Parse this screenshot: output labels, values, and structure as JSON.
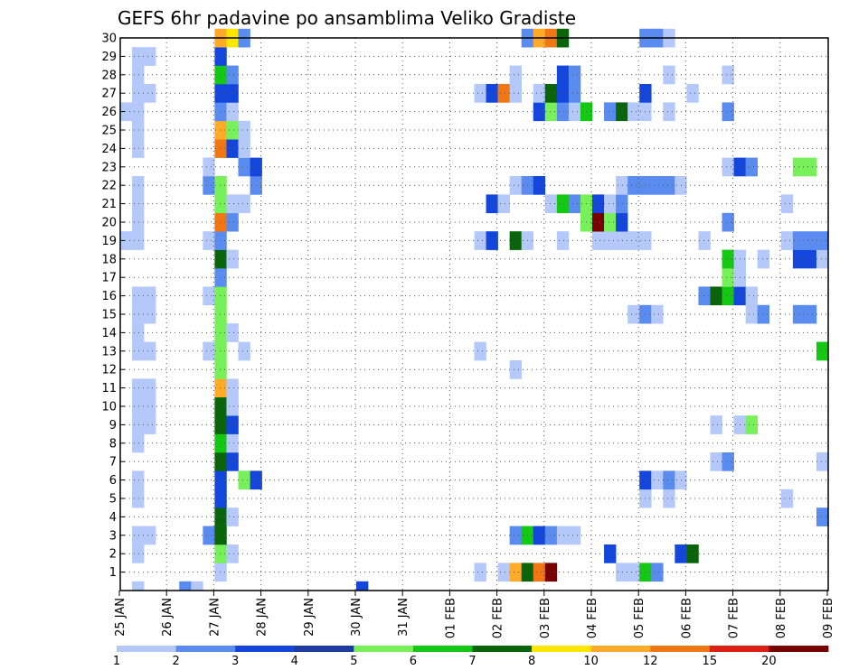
{
  "chart_data": {
    "type": "heatmap",
    "title": "GEFS 6hr padavine po ansamblima Veliko Gradiste",
    "x_tick_labels": [
      "25 JAN",
      "26 JAN",
      "27 JAN",
      "28 JAN",
      "29 JAN",
      "30 JAN",
      "31 JAN",
      "01 FEB",
      "02 FEB",
      "03 FEB",
      "04 FEB",
      "05 FEB",
      "06 FEB",
      "07 FEB",
      "08 FEB",
      "09 FEB"
    ],
    "y_tick_labels": [
      "1",
      "2",
      "3",
      "4",
      "5",
      "6",
      "7",
      "8",
      "9",
      "10",
      "11",
      "12",
      "13",
      "14",
      "15",
      "16",
      "17",
      "18",
      "19",
      "20",
      "21",
      "22",
      "23",
      "24",
      "25",
      "26",
      "27",
      "28",
      "29",
      "30"
    ],
    "legend": {
      "thresholds": [
        "1",
        "2",
        "3",
        "4",
        "5",
        "6",
        "7",
        "8",
        "10",
        "12",
        "15",
        "20"
      ],
      "colors": [
        "#b4c8fa",
        "#5a8cf0",
        "#1446dc",
        "#1e3ca0",
        "#78f05a",
        "#14c814",
        "#0a640a",
        "#ffe600",
        "#ffaa28",
        "#f07814",
        "#dc1e14",
        "#780000"
      ]
    },
    "grid": true,
    "cells": [
      {
        "x": 1,
        "m": 1,
        "l": 1
      },
      {
        "x": 5,
        "m": 1,
        "l": 2
      },
      {
        "x": 6,
        "m": 1,
        "l": 1
      },
      {
        "x": 20,
        "m": 1,
        "l": 3
      },
      {
        "x": 8,
        "m": 2,
        "l": 1
      },
      {
        "x": 30,
        "m": 2,
        "l": 1
      },
      {
        "x": 32,
        "m": 2,
        "l": 1
      },
      {
        "x": 33,
        "m": 2,
        "l": 9
      },
      {
        "x": 34,
        "m": 2,
        "l": 7
      },
      {
        "x": 35,
        "m": 2,
        "l": 10
      },
      {
        "x": 36,
        "m": 2,
        "l": 12
      },
      {
        "x": 42,
        "m": 2,
        "l": 1
      },
      {
        "x": 43,
        "m": 2,
        "l": 1
      },
      {
        "x": 44,
        "m": 2,
        "l": 6
      },
      {
        "x": 45,
        "m": 2,
        "l": 2
      },
      {
        "x": 1,
        "m": 3,
        "l": 1
      },
      {
        "x": 8,
        "m": 3,
        "l": 5
      },
      {
        "x": 9,
        "m": 3,
        "l": 1
      },
      {
        "x": 41,
        "m": 3,
        "l": 3
      },
      {
        "x": 47,
        "m": 3,
        "l": 3
      },
      {
        "x": 48,
        "m": 3,
        "l": 7
      },
      {
        "x": 1,
        "m": 4,
        "l": 1
      },
      {
        "x": 2,
        "m": 4,
        "l": 1
      },
      {
        "x": 7,
        "m": 4,
        "l": 2
      },
      {
        "x": 8,
        "m": 4,
        "l": 7
      },
      {
        "x": 33,
        "m": 4,
        "l": 2
      },
      {
        "x": 34,
        "m": 4,
        "l": 6
      },
      {
        "x": 35,
        "m": 4,
        "l": 3
      },
      {
        "x": 36,
        "m": 4,
        "l": 2
      },
      {
        "x": 37,
        "m": 4,
        "l": 1
      },
      {
        "x": 38,
        "m": 4,
        "l": 1
      },
      {
        "x": 8,
        "m": 5,
        "l": 7
      },
      {
        "x": 9,
        "m": 5,
        "l": 1
      },
      {
        "x": 59,
        "m": 5,
        "l": 2
      },
      {
        "x": 1,
        "m": 6,
        "l": 1
      },
      {
        "x": 8,
        "m": 6,
        "l": 3
      },
      {
        "x": 44,
        "m": 6,
        "l": 1
      },
      {
        "x": 46,
        "m": 6,
        "l": 1
      },
      {
        "x": 56,
        "m": 6,
        "l": 1
      },
      {
        "x": 1,
        "m": 7,
        "l": 1
      },
      {
        "x": 8,
        "m": 7,
        "l": 3
      },
      {
        "x": 10,
        "m": 7,
        "l": 5
      },
      {
        "x": 11,
        "m": 7,
        "l": 3
      },
      {
        "x": 44,
        "m": 7,
        "l": 3
      },
      {
        "x": 45,
        "m": 7,
        "l": 1
      },
      {
        "x": 46,
        "m": 7,
        "l": 2
      },
      {
        "x": 47,
        "m": 7,
        "l": 1
      },
      {
        "x": 8,
        "m": 8,
        "l": 7
      },
      {
        "x": 9,
        "m": 8,
        "l": 3
      },
      {
        "x": 50,
        "m": 8,
        "l": 1
      },
      {
        "x": 51,
        "m": 8,
        "l": 2
      },
      {
        "x": 59,
        "m": 8,
        "l": 1
      },
      {
        "x": 1,
        "m": 9,
        "l": 1
      },
      {
        "x": 8,
        "m": 9,
        "l": 6
      },
      {
        "x": 9,
        "m": 9,
        "l": 1
      },
      {
        "x": 1,
        "m": 10,
        "l": 1
      },
      {
        "x": 2,
        "m": 10,
        "l": 1
      },
      {
        "x": 8,
        "m": 10,
        "l": 7
      },
      {
        "x": 9,
        "m": 10,
        "l": 3
      },
      {
        "x": 50,
        "m": 10,
        "l": 1
      },
      {
        "x": 52,
        "m": 10,
        "l": 1
      },
      {
        "x": 53,
        "m": 10,
        "l": 5
      },
      {
        "x": 1,
        "m": 11,
        "l": 1
      },
      {
        "x": 2,
        "m": 11,
        "l": 1
      },
      {
        "x": 8,
        "m": 11,
        "l": 7
      },
      {
        "x": 9,
        "m": 11,
        "l": 1
      },
      {
        "x": 1,
        "m": 12,
        "l": 1
      },
      {
        "x": 2,
        "m": 12,
        "l": 1
      },
      {
        "x": 8,
        "m": 12,
        "l": 9
      },
      {
        "x": 9,
        "m": 12,
        "l": 1
      },
      {
        "x": 8,
        "m": 13,
        "l": 5
      },
      {
        "x": 33,
        "m": 13,
        "l": 1
      },
      {
        "x": 1,
        "m": 14,
        "l": 1
      },
      {
        "x": 2,
        "m": 14,
        "l": 1
      },
      {
        "x": 7,
        "m": 14,
        "l": 1
      },
      {
        "x": 8,
        "m": 14,
        "l": 5
      },
      {
        "x": 10,
        "m": 14,
        "l": 1
      },
      {
        "x": 30,
        "m": 14,
        "l": 1
      },
      {
        "x": 59,
        "m": 14,
        "l": 6
      },
      {
        "x": 1,
        "m": 15,
        "l": 1
      },
      {
        "x": 8,
        "m": 15,
        "l": 5
      },
      {
        "x": 9,
        "m": 15,
        "l": 1
      },
      {
        "x": 1,
        "m": 16,
        "l": 1
      },
      {
        "x": 2,
        "m": 16,
        "l": 1
      },
      {
        "x": 8,
        "m": 16,
        "l": 5
      },
      {
        "x": 43,
        "m": 16,
        "l": 1
      },
      {
        "x": 44,
        "m": 16,
        "l": 2
      },
      {
        "x": 45,
        "m": 16,
        "l": 1
      },
      {
        "x": 53,
        "m": 16,
        "l": 1
      },
      {
        "x": 54,
        "m": 16,
        "l": 2
      },
      {
        "x": 57,
        "m": 16,
        "l": 2
      },
      {
        "x": 58,
        "m": 16,
        "l": 2
      },
      {
        "x": 1,
        "m": 17,
        "l": 1
      },
      {
        "x": 2,
        "m": 17,
        "l": 1
      },
      {
        "x": 7,
        "m": 17,
        "l": 1
      },
      {
        "x": 8,
        "m": 17,
        "l": 5
      },
      {
        "x": 49,
        "m": 17,
        "l": 2
      },
      {
        "x": 50,
        "m": 17,
        "l": 7
      },
      {
        "x": 51,
        "m": 17,
        "l": 6
      },
      {
        "x": 52,
        "m": 17,
        "l": 3
      },
      {
        "x": 53,
        "m": 17,
        "l": 1
      },
      {
        "x": 8,
        "m": 18,
        "l": 2
      },
      {
        "x": 51,
        "m": 18,
        "l": 5
      },
      {
        "x": 52,
        "m": 18,
        "l": 1
      },
      {
        "x": 8,
        "m": 19,
        "l": 7
      },
      {
        "x": 9,
        "m": 19,
        "l": 1
      },
      {
        "x": 51,
        "m": 19,
        "l": 6
      },
      {
        "x": 52,
        "m": 19,
        "l": 1
      },
      {
        "x": 54,
        "m": 19,
        "l": 1
      },
      {
        "x": 57,
        "m": 19,
        "l": 3
      },
      {
        "x": 58,
        "m": 19,
        "l": 3
      },
      {
        "x": 59,
        "m": 19,
        "l": 1
      },
      {
        "x": 0,
        "m": 20,
        "l": 1
      },
      {
        "x": 1,
        "m": 20,
        "l": 1
      },
      {
        "x": 7,
        "m": 20,
        "l": 1
      },
      {
        "x": 8,
        "m": 20,
        "l": 2
      },
      {
        "x": 30,
        "m": 20,
        "l": 1
      },
      {
        "x": 31,
        "m": 20,
        "l": 3
      },
      {
        "x": 33,
        "m": 20,
        "l": 7
      },
      {
        "x": 34,
        "m": 20,
        "l": 1
      },
      {
        "x": 37,
        "m": 20,
        "l": 1
      },
      {
        "x": 40,
        "m": 20,
        "l": 1
      },
      {
        "x": 41,
        "m": 20,
        "l": 1
      },
      {
        "x": 42,
        "m": 20,
        "l": 1
      },
      {
        "x": 43,
        "m": 20,
        "l": 1
      },
      {
        "x": 44,
        "m": 20,
        "l": 1
      },
      {
        "x": 49,
        "m": 20,
        "l": 1
      },
      {
        "x": 56,
        "m": 20,
        "l": 1
      },
      {
        "x": 57,
        "m": 20,
        "l": 2
      },
      {
        "x": 58,
        "m": 20,
        "l": 2
      },
      {
        "x": 59,
        "m": 20,
        "l": 2
      },
      {
        "x": 1,
        "m": 21,
        "l": 1
      },
      {
        "x": 8,
        "m": 21,
        "l": 10
      },
      {
        "x": 9,
        "m": 21,
        "l": 2
      },
      {
        "x": 39,
        "m": 21,
        "l": 5
      },
      {
        "x": 40,
        "m": 21,
        "l": 12
      },
      {
        "x": 41,
        "m": 21,
        "l": 5
      },
      {
        "x": 42,
        "m": 21,
        "l": 3
      },
      {
        "x": 51,
        "m": 21,
        "l": 2
      },
      {
        "x": 1,
        "m": 22,
        "l": 1
      },
      {
        "x": 8,
        "m": 22,
        "l": 5
      },
      {
        "x": 9,
        "m": 22,
        "l": 1
      },
      {
        "x": 10,
        "m": 22,
        "l": 1
      },
      {
        "x": 31,
        "m": 22,
        "l": 3
      },
      {
        "x": 32,
        "m": 22,
        "l": 1
      },
      {
        "x": 36,
        "m": 22,
        "l": 1
      },
      {
        "x": 37,
        "m": 22,
        "l": 6
      },
      {
        "x": 38,
        "m": 22,
        "l": 2
      },
      {
        "x": 39,
        "m": 22,
        "l": 5
      },
      {
        "x": 40,
        "m": 22,
        "l": 3
      },
      {
        "x": 41,
        "m": 22,
        "l": 1
      },
      {
        "x": 42,
        "m": 22,
        "l": 2
      },
      {
        "x": 56,
        "m": 22,
        "l": 1
      },
      {
        "x": 1,
        "m": 23,
        "l": 1
      },
      {
        "x": 7,
        "m": 23,
        "l": 2
      },
      {
        "x": 8,
        "m": 23,
        "l": 5
      },
      {
        "x": 11,
        "m": 23,
        "l": 2
      },
      {
        "x": 33,
        "m": 23,
        "l": 1
      },
      {
        "x": 34,
        "m": 23,
        "l": 2
      },
      {
        "x": 35,
        "m": 23,
        "l": 3
      },
      {
        "x": 42,
        "m": 23,
        "l": 1
      },
      {
        "x": 43,
        "m": 23,
        "l": 2
      },
      {
        "x": 44,
        "m": 23,
        "l": 2
      },
      {
        "x": 45,
        "m": 23,
        "l": 2
      },
      {
        "x": 46,
        "m": 23,
        "l": 2
      },
      {
        "x": 47,
        "m": 23,
        "l": 1
      },
      {
        "x": 7,
        "m": 24,
        "l": 1
      },
      {
        "x": 10,
        "m": 24,
        "l": 2
      },
      {
        "x": 11,
        "m": 24,
        "l": 3
      },
      {
        "x": 51,
        "m": 24,
        "l": 1
      },
      {
        "x": 52,
        "m": 24,
        "l": 3
      },
      {
        "x": 53,
        "m": 24,
        "l": 2
      },
      {
        "x": 57,
        "m": 24,
        "l": 5
      },
      {
        "x": 58,
        "m": 24,
        "l": 5
      },
      {
        "x": 1,
        "m": 25,
        "l": 1
      },
      {
        "x": 8,
        "m": 25,
        "l": 10
      },
      {
        "x": 9,
        "m": 25,
        "l": 3
      },
      {
        "x": 10,
        "m": 25,
        "l": 1
      },
      {
        "x": 1,
        "m": 26,
        "l": 1
      },
      {
        "x": 8,
        "m": 26,
        "l": 9
      },
      {
        "x": 9,
        "m": 26,
        "l": 5
      },
      {
        "x": 10,
        "m": 26,
        "l": 1
      },
      {
        "x": 0,
        "m": 27,
        "l": 1
      },
      {
        "x": 1,
        "m": 27,
        "l": 1
      },
      {
        "x": 8,
        "m": 27,
        "l": 2
      },
      {
        "x": 9,
        "m": 27,
        "l": 1
      },
      {
        "x": 35,
        "m": 27,
        "l": 3
      },
      {
        "x": 36,
        "m": 27,
        "l": 5
      },
      {
        "x": 37,
        "m": 27,
        "l": 2
      },
      {
        "x": 38,
        "m": 27,
        "l": 1
      },
      {
        "x": 39,
        "m": 27,
        "l": 6
      },
      {
        "x": 41,
        "m": 27,
        "l": 2
      },
      {
        "x": 42,
        "m": 27,
        "l": 7
      },
      {
        "x": 43,
        "m": 27,
        "l": 1
      },
      {
        "x": 44,
        "m": 27,
        "l": 1
      },
      {
        "x": 46,
        "m": 27,
        "l": 1
      },
      {
        "x": 51,
        "m": 27,
        "l": 2
      },
      {
        "x": 1,
        "m": 28,
        "l": 1
      },
      {
        "x": 2,
        "m": 28,
        "l": 1
      },
      {
        "x": 8,
        "m": 28,
        "l": 3
      },
      {
        "x": 9,
        "m": 28,
        "l": 3
      },
      {
        "x": 30,
        "m": 28,
        "l": 1
      },
      {
        "x": 31,
        "m": 28,
        "l": 3
      },
      {
        "x": 32,
        "m": 28,
        "l": 10
      },
      {
        "x": 33,
        "m": 28,
        "l": 1
      },
      {
        "x": 35,
        "m": 28,
        "l": 1
      },
      {
        "x": 36,
        "m": 28,
        "l": 7
      },
      {
        "x": 37,
        "m": 28,
        "l": 3
      },
      {
        "x": 38,
        "m": 28,
        "l": 2
      },
      {
        "x": 44,
        "m": 28,
        "l": 3
      },
      {
        "x": 48,
        "m": 28,
        "l": 1
      },
      {
        "x": 1,
        "m": 29,
        "l": 1
      },
      {
        "x": 8,
        "m": 29,
        "l": 6
      },
      {
        "x": 9,
        "m": 29,
        "l": 2
      },
      {
        "x": 33,
        "m": 29,
        "l": 1
      },
      {
        "x": 37,
        "m": 29,
        "l": 3
      },
      {
        "x": 38,
        "m": 29,
        "l": 2
      },
      {
        "x": 46,
        "m": 29,
        "l": 1
      },
      {
        "x": 51,
        "m": 29,
        "l": 1
      },
      {
        "x": 1,
        "m": 30,
        "l": 1
      },
      {
        "x": 2,
        "m": 30,
        "l": 1
      },
      {
        "x": 8,
        "m": 30,
        "l": 3
      },
      {
        "x": 8,
        "m": 31,
        "l": 9
      },
      {
        "x": 9,
        "m": 31,
        "l": 8
      },
      {
        "x": 10,
        "m": 31,
        "l": 2
      },
      {
        "x": 34,
        "m": 31,
        "l": 2
      },
      {
        "x": 35,
        "m": 31,
        "l": 9
      },
      {
        "x": 36,
        "m": 31,
        "l": 10
      },
      {
        "x": 37,
        "m": 31,
        "l": 7
      },
      {
        "x": 44,
        "m": 31,
        "l": 2
      },
      {
        "x": 45,
        "m": 31,
        "l": 2
      },
      {
        "x": 46,
        "m": 31,
        "l": 1
      }
    ]
  }
}
